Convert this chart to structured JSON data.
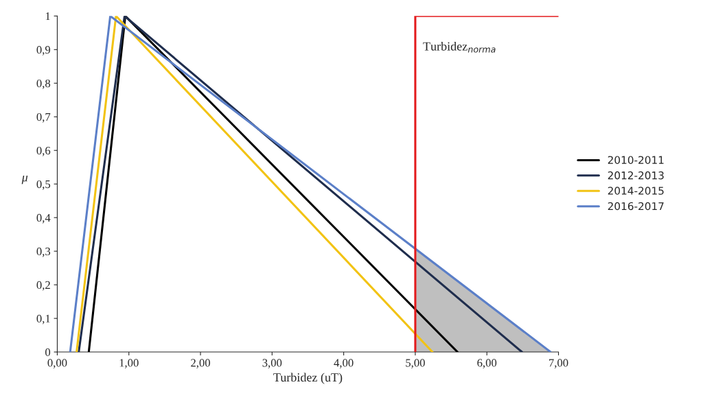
{
  "chart_data": {
    "type": "line",
    "xlabel": "Turbidez (uT)",
    "ylabel": "μ",
    "xlim": [
      0,
      7
    ],
    "ylim": [
      0,
      1
    ],
    "xticks": [
      {
        "value": 0,
        "label": "0,00"
      },
      {
        "value": 1,
        "label": "1,00"
      },
      {
        "value": 2,
        "label": "2,00"
      },
      {
        "value": 3,
        "label": "3,00"
      },
      {
        "value": 4,
        "label": "4,00"
      },
      {
        "value": 5,
        "label": "5,00"
      },
      {
        "value": 6,
        "label": "6,00"
      },
      {
        "value": 7,
        "label": "7,00"
      }
    ],
    "yticks": [
      0,
      {
        "value": 0.1,
        "label": "0,1"
      },
      {
        "value": 0.2,
        "label": "0,2"
      },
      {
        "value": 0.3,
        "label": "0,3"
      },
      {
        "value": 0.4,
        "label": "0,4"
      },
      {
        "value": 0.5,
        "label": "0,5"
      },
      {
        "value": 0.6,
        "label": "0,6"
      },
      {
        "value": 0.7,
        "label": "0,7"
      },
      {
        "value": 0.8,
        "label": "0,8"
      },
      {
        "value": 0.9,
        "label": "0,9"
      },
      1
    ],
    "series": [
      {
        "type": "area",
        "color": "#bfbfbf",
        "x": [
          5,
          6.89
        ],
        "values": [
          0.31,
          0
        ]
      },
      {
        "name": "2010-2011",
        "color": "#000000",
        "x": [
          0.44,
          0.95,
          5.59
        ],
        "values": [
          0,
          1,
          0
        ]
      },
      {
        "name": "2012-2013",
        "color": "#1f2d4d",
        "x": [
          0.3,
          0.94,
          6.49
        ],
        "values": [
          0,
          1,
          0
        ]
      },
      {
        "name": "2014-2015",
        "color": "#f2c314",
        "x": [
          0.27,
          0.82,
          5.24
        ],
        "values": [
          0,
          1,
          0
        ]
      },
      {
        "name": "2016-2017",
        "color": "#5b7fc8",
        "x": [
          0.18,
          0.74,
          6.89
        ],
        "values": [
          0,
          1,
          0
        ]
      },
      {
        "type": "line",
        "color": "#e31a1c",
        "x": [
          5,
          5,
          7
        ],
        "values": [
          0,
          1,
          1
        ]
      }
    ],
    "annotations": [
      {
        "text": "Turbidez$_{norma}$",
        "x": 5,
        "y": 0.94
      }
    ],
    "legend": "right",
    "grid": false,
    "marker": "none",
    "line_style": "solid"
  }
}
